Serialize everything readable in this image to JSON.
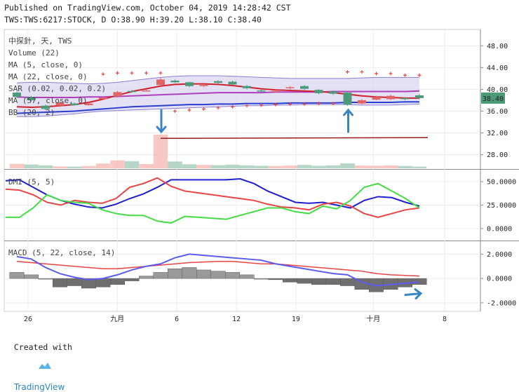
{
  "header": {
    "line1": "Published on TradingView.com, October 04, 2019 14:28:42 CST",
    "line2": "TWS:TWS:6217:STOCK, D O:38.90 H:39.20 L:38.10 C:38.40"
  },
  "footer": {
    "prefix": "Created with",
    "brand": "TradingView"
  },
  "chart_data": [
    {
      "type": "candlestick",
      "panel": "price",
      "legend": [
        "中探針, 天, TWS",
        "Volume (22)",
        "MA (5, close, 0)",
        "MA (22, close, 0)",
        "SAR (0.02, 0.02, 0.2)",
        "MA (57, close, 0)",
        "BB (20, 2)"
      ],
      "y_ticks": [
        "48.00",
        "44.00",
        "40.00",
        "36.00",
        "32.00",
        "28.00"
      ],
      "y_tick_values": [
        48,
        44,
        40,
        36,
        32,
        28
      ],
      "ylim": [
        25.5,
        51
      ],
      "last_price_label": "38.40",
      "candles": [
        {
          "i": 0,
          "o": 39.4,
          "c": 38.6,
          "h": 39.6,
          "l": 38.4
        },
        {
          "i": 1,
          "o": 38.6,
          "c": 38.0,
          "h": 38.8,
          "l": 37.8
        },
        {
          "i": 2,
          "o": 37.0,
          "c": 36.4,
          "h": 37.2,
          "l": 36.2
        },
        {
          "i": 3,
          "o": 37.0,
          "c": 37.6,
          "h": 37.8,
          "l": 36.8
        },
        {
          "i": 4,
          "o": 37.4,
          "c": 37.1,
          "h": 37.6,
          "l": 37.0
        },
        {
          "i": 5,
          "o": 37.1,
          "c": 37.4,
          "h": 37.6,
          "l": 37.0
        },
        {
          "i": 6,
          "o": 38.2,
          "c": 38.5,
          "h": 38.7,
          "l": 38.0
        },
        {
          "i": 7,
          "o": 38.7,
          "c": 39.5,
          "h": 39.7,
          "l": 38.5
        },
        {
          "i": 8,
          "o": 39.7,
          "c": 39.6,
          "h": 39.9,
          "l": 39.4
        },
        {
          "i": 9,
          "o": 39.8,
          "c": 39.8,
          "h": 40.0,
          "l": 39.6
        },
        {
          "i": 10,
          "o": 40.8,
          "c": 41.8,
          "h": 42.2,
          "l": 40.6
        },
        {
          "i": 11,
          "o": 41.6,
          "c": 41.3,
          "h": 41.8,
          "l": 41.2
        },
        {
          "i": 12,
          "o": 41.3,
          "c": 40.6,
          "h": 41.4,
          "l": 40.4
        },
        {
          "i": 13,
          "o": 40.6,
          "c": 40.8,
          "h": 41.0,
          "l": 40.4
        },
        {
          "i": 14,
          "o": 41.5,
          "c": 41.2,
          "h": 41.7,
          "l": 41.0
        },
        {
          "i": 15,
          "o": 41.4,
          "c": 40.9,
          "h": 41.6,
          "l": 40.8
        },
        {
          "i": 16,
          "o": 40.6,
          "c": 40.2,
          "h": 40.8,
          "l": 40.0
        },
        {
          "i": 17,
          "o": 39.8,
          "c": 39.6,
          "h": 40.0,
          "l": 39.4
        },
        {
          "i": 18,
          "o": 39.6,
          "c": 39.7,
          "h": 39.9,
          "l": 39.4
        },
        {
          "i": 19,
          "o": 40.3,
          "c": 40.4,
          "h": 40.6,
          "l": 40.0
        },
        {
          "i": 20,
          "o": 40.6,
          "c": 40.1,
          "h": 40.8,
          "l": 39.9
        },
        {
          "i": 21,
          "o": 39.9,
          "c": 39.3,
          "h": 40.0,
          "l": 39.1
        },
        {
          "i": 22,
          "o": 39.6,
          "c": 39.2,
          "h": 39.8,
          "l": 39.0
        },
        {
          "i": 23,
          "o": 39.4,
          "c": 37.2,
          "h": 39.6,
          "l": 37.0
        },
        {
          "i": 24,
          "o": 37.4,
          "c": 38.0,
          "h": 38.2,
          "l": 37.2
        },
        {
          "i": 25,
          "o": 38.1,
          "c": 38.6,
          "h": 38.8,
          "l": 38.0
        },
        {
          "i": 26,
          "o": 38.2,
          "c": 38.8,
          "h": 39.0,
          "l": 38.0
        },
        {
          "i": 27,
          "o": 38.4,
          "c": 38.2,
          "h": 38.5,
          "l": 38.0
        },
        {
          "i": 28,
          "o": 38.9,
          "c": 38.4,
          "h": 39.2,
          "l": 38.1
        }
      ],
      "volume": [
        4.2,
        3.6,
        2.8,
        1.8,
        1.6,
        2.2,
        4.5,
        7.5,
        6.8,
        4.0,
        32.0,
        6.5,
        3.8,
        3.2,
        3.0,
        3.4,
        2.8,
        2.4,
        2.2,
        2.6,
        3.2,
        2.4,
        2.8,
        4.8,
        2.6,
        2.4,
        2.8,
        2.2,
        1.6
      ],
      "volume_up": [
        true,
        false,
        false,
        true,
        false,
        true,
        true,
        true,
        false,
        true,
        true,
        false,
        false,
        true,
        false,
        false,
        false,
        false,
        true,
        true,
        false,
        false,
        false,
        false,
        true,
        true,
        true,
        false,
        false
      ],
      "ma5": [
        36.8,
        36.7,
        36.8,
        37.0,
        37.2,
        37.6,
        38.2,
        38.9,
        39.6,
        40.1,
        40.6,
        40.9,
        41.0,
        41.0,
        40.9,
        40.7,
        40.4,
        40.1,
        39.9,
        39.8,
        39.7,
        39.6,
        39.4,
        39.1,
        38.8,
        38.6,
        38.5,
        38.4,
        38.4
      ],
      "ma22": [
        38.6,
        38.5,
        38.5,
        38.5,
        38.5,
        38.6,
        38.6,
        38.7,
        38.8,
        38.9,
        39.0,
        39.1,
        39.2,
        39.3,
        39.4,
        39.4,
        39.4,
        39.4,
        39.5,
        39.5,
        39.5,
        39.5,
        39.6,
        39.6,
        39.6,
        39.6,
        39.6,
        39.6,
        39.7
      ],
      "ma57": [
        35.6,
        35.7,
        35.8,
        35.9,
        36.0,
        36.2,
        36.4,
        36.6,
        36.8,
        36.9,
        37.0,
        37.1,
        37.2,
        37.2,
        37.3,
        37.3,
        37.4,
        37.4,
        37.4,
        37.5,
        37.5,
        37.5,
        37.5,
        37.6,
        37.6,
        37.6,
        37.6,
        37.7,
        37.7
      ],
      "bb_upper": [
        41.2,
        41.3,
        41.3,
        41.2,
        41.1,
        41.0,
        41.1,
        41.3,
        41.6,
        41.9,
        42.2,
        42.4,
        42.5,
        42.5,
        42.5,
        42.4,
        42.3,
        42.2,
        42.1,
        42.0,
        42.0,
        42.0,
        42.0,
        42.0,
        42.1,
        42.2,
        42.2,
        42.2,
        42.2
      ],
      "bb_lower": [
        35.0,
        35.0,
        35.1,
        35.3,
        35.5,
        35.8,
        36.0,
        36.1,
        36.2,
        36.3,
        36.4,
        36.5,
        36.6,
        36.7,
        36.8,
        36.9,
        37.0,
        37.0,
        37.1,
        37.1,
        37.2,
        37.2,
        37.2,
        37.2,
        37.1,
        37.1,
        37.1,
        37.2,
        37.3
      ],
      "sar": [
        null,
        null,
        null,
        null,
        null,
        null,
        42.8,
        43.0,
        43.0,
        43.0,
        43.0,
        36.0,
        36.2,
        36.4,
        36.6,
        36.8,
        37.0,
        37.1,
        37.2,
        37.3,
        37.3,
        37.4,
        37.4,
        43.2,
        43.2,
        42.9,
        42.9,
        42.6,
        42.6
      ],
      "sar_note": "points indexed from candle index 1",
      "resistance_line": 31.0,
      "arrows": [
        {
          "at": 10,
          "dir": "down"
        },
        {
          "at": 23,
          "dir": "up"
        }
      ]
    },
    {
      "type": "line",
      "panel": "dmi",
      "legend": "DMI (5, 5)",
      "y_ticks": [
        "50.0000",
        "25.0000",
        "0.0000"
      ],
      "y_tick_values": [
        50,
        25,
        0
      ],
      "ylim": [
        -12,
        62
      ],
      "series": [
        {
          "color": "#1f1fd0",
          "values": [
            51,
            52,
            44,
            36,
            30,
            26,
            23,
            22,
            26,
            32,
            37,
            44,
            52,
            52,
            52,
            52,
            52,
            53,
            48,
            40,
            34,
            28,
            27,
            28,
            25,
            22,
            30,
            34,
            33,
            28,
            24
          ]
        },
        {
          "color": "#e84444",
          "values": [
            42,
            41,
            36,
            28,
            25,
            30,
            28,
            27,
            32,
            44,
            48,
            54,
            45,
            40,
            38,
            36,
            34,
            32,
            30,
            26,
            23,
            22,
            20,
            26,
            28,
            24,
            16,
            12,
            16,
            20,
            22
          ]
        },
        {
          "color": "#44dd44",
          "values": [
            12,
            12,
            22,
            36,
            30,
            28,
            27,
            20,
            16,
            14,
            14,
            8,
            6,
            13,
            12,
            11,
            10,
            14,
            18,
            22,
            22,
            18,
            16,
            24,
            21,
            30,
            44,
            48,
            40,
            32,
            22
          ]
        }
      ]
    },
    {
      "type": "bar_line",
      "panel": "macd",
      "legend": "MACD (5, 22, close, 14)",
      "y_ticks": [
        "2.0000",
        "0.0000",
        "-2.0000"
      ],
      "y_tick_values": [
        2,
        0,
        -2
      ],
      "ylim": [
        -2.7,
        3.0
      ],
      "histogram": [
        0.5,
        0.3,
        0.0,
        -0.7,
        -0.6,
        -0.8,
        -0.7,
        -0.5,
        -0.2,
        0.2,
        0.5,
        0.8,
        0.9,
        0.7,
        0.6,
        0.5,
        0.3,
        0.0,
        -0.1,
        -0.3,
        -0.4,
        -0.5,
        -0.5,
        -0.6,
        -0.9,
        -1.1,
        -0.9,
        -0.7,
        -0.5
      ],
      "macd_line": [
        1.8,
        1.6,
        0.9,
        0.4,
        0.1,
        -0.1,
        0.0,
        0.3,
        0.7,
        1.0,
        1.2,
        1.7,
        2.0,
        1.9,
        1.8,
        1.7,
        1.6,
        1.5,
        1.2,
        1.0,
        0.8,
        0.6,
        0.4,
        0.3,
        -0.3,
        -0.6,
        -0.5,
        -0.4,
        -0.3
      ],
      "signal_line": [
        1.4,
        1.3,
        1.2,
        1.1,
        1.0,
        0.9,
        0.8,
        0.8,
        0.9,
        1.0,
        1.1,
        1.2,
        1.3,
        1.35,
        1.4,
        1.4,
        1.3,
        1.2,
        1.2,
        1.1,
        1.0,
        0.9,
        0.8,
        0.7,
        0.6,
        0.4,
        0.3,
        0.25,
        0.2
      ],
      "arrow": "right"
    }
  ],
  "x_axis": {
    "ticks": [
      {
        "label": "26",
        "pos": 2
      },
      {
        "label": "九月",
        "pos": 9.5
      },
      {
        "label": "6",
        "pos": 14.5
      },
      {
        "label": "12",
        "pos": 19.5
      },
      {
        "label": "19",
        "pos": 24.5
      },
      {
        "label": "十月",
        "pos": 31
      },
      {
        "label": "8",
        "pos": 37
      }
    ]
  },
  "colors": {
    "up": "#e06666",
    "up_fill": "#f4b6b0",
    "down": "#4d9a7a",
    "down_fill": "#9dc9b4",
    "ma5": "#d0202a",
    "ma22": "#b03fbf",
    "ma57": "#2a3fd0",
    "bb": "#8a7fd8",
    "bb_fill": "#d8d4f0",
    "sar": "#e84444",
    "arrow": "#3b84c4",
    "resistance": "#9c1a1a"
  }
}
